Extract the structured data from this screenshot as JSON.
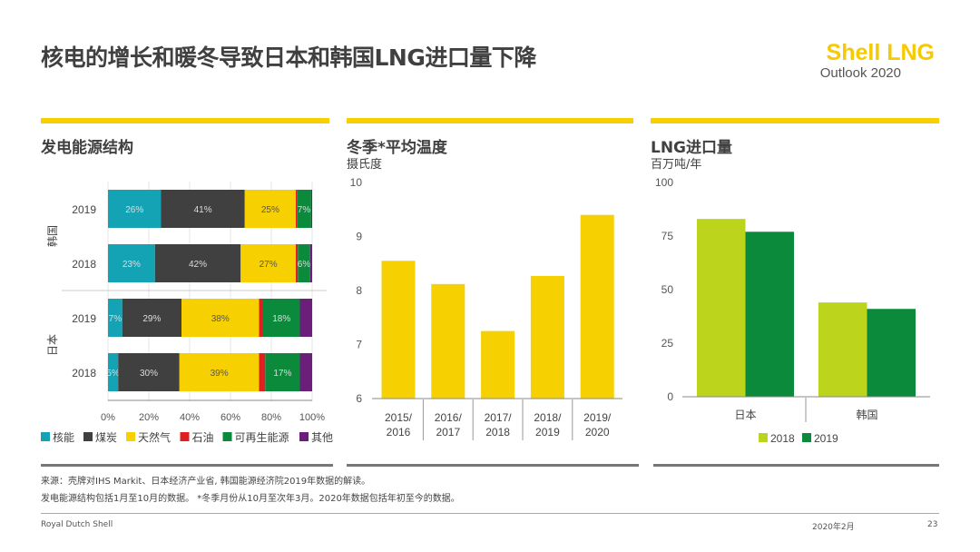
{
  "title": "核电的增长和暖冬导致日本和韩国LNG进口量下降",
  "logo": {
    "line1": "Shell LNG",
    "line2": "Outlook 2020"
  },
  "colors": {
    "accent": "#f6d000",
    "nuclear": "#13a3b4",
    "coal": "#404040",
    "gas": "#f6d000",
    "oil": "#e02020",
    "renewables": "#0a8a3a",
    "other": "#6b1f7a",
    "lng2018": "#bdd41c",
    "lng2019": "#0a8a3a"
  },
  "chart_data": [
    {
      "type": "bar",
      "orientation": "horizontal-stacked",
      "title": "发电能源结构",
      "groups": [
        "韩国",
        "日本"
      ],
      "rows": [
        {
          "group": "韩国",
          "year": "2019",
          "values": [
            26,
            41,
            25,
            0.5,
            7,
            0.5
          ],
          "labels": [
            "26%",
            "41%",
            "25%",
            "",
            "7%",
            ""
          ]
        },
        {
          "group": "韩国",
          "year": "2018",
          "values": [
            23,
            42,
            27,
            1,
            6,
            1
          ],
          "labels": [
            "23%",
            "42%",
            "27%",
            "",
            "6%",
            ""
          ]
        },
        {
          "group": "日本",
          "year": "2019",
          "values": [
            7,
            29,
            38,
            2,
            18,
            6
          ],
          "labels": [
            "7%",
            "29%",
            "38%",
            "",
            "18%",
            ""
          ]
        },
        {
          "group": "日本",
          "year": "2018",
          "values": [
            5,
            30,
            39,
            3,
            17,
            6
          ],
          "labels": [
            "5%",
            "30%",
            "39%",
            "",
            "17%",
            ""
          ]
        }
      ],
      "series": [
        "核能",
        "煤炭",
        "天然气",
        "石油",
        "可再生能源",
        "其他"
      ],
      "xticks": [
        "0%",
        "20%",
        "40%",
        "60%",
        "80%",
        "100%"
      ],
      "xlim": [
        0,
        100
      ]
    },
    {
      "type": "bar",
      "title": "冬季*平均温度",
      "ylabel": "摄氏度",
      "categories": [
        [
          "2015/",
          "2016"
        ],
        [
          "2016/",
          "2017"
        ],
        [
          "2017/",
          "2018"
        ],
        [
          "2018/",
          "2019"
        ],
        [
          "2019/",
          "2020"
        ]
      ],
      "values": [
        8.55,
        8.12,
        7.25,
        8.27,
        9.4
      ],
      "ylim": [
        6,
        10
      ],
      "yticks": [
        "6",
        "7",
        "8",
        "9",
        "10"
      ]
    },
    {
      "type": "bar",
      "title": "LNG进口量",
      "ylabel": "百万吨/年",
      "categories": [
        "日本",
        "韩国"
      ],
      "series": [
        {
          "name": "2018",
          "values": [
            83,
            44
          ]
        },
        {
          "name": "2019",
          "values": [
            77,
            41
          ]
        }
      ],
      "ylim": [
        0,
        100
      ],
      "yticks": [
        "0",
        "25",
        "50",
        "75",
        "100"
      ]
    }
  ],
  "notes": [
    "来源：壳牌对IHS Markit、日本经济产业省, 韩国能源经济院2019年数据的解读。",
    "发电能源结构包括1月至10月的数据。 *冬季月份从10月至次年3月。2020年数据包括年初至今的数据。"
  ],
  "footer": {
    "company": "Royal Dutch Shell",
    "date": "2020年2月",
    "page": "23"
  }
}
